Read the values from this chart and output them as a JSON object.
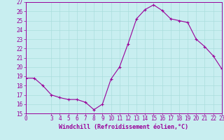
{
  "x": [
    0,
    1,
    2,
    3,
    4,
    5,
    6,
    7,
    8,
    9,
    10,
    11,
    12,
    13,
    14,
    15,
    16,
    17,
    18,
    19,
    20,
    21,
    22,
    23
  ],
  "y": [
    18.8,
    18.8,
    18.0,
    17.0,
    16.7,
    16.5,
    16.5,
    16.2,
    15.4,
    16.0,
    18.7,
    20.0,
    22.5,
    25.2,
    26.2,
    26.7,
    26.1,
    25.2,
    25.0,
    24.8,
    23.0,
    22.2,
    21.2,
    19.8
  ],
  "ylim": [
    15,
    27
  ],
  "xlim": [
    0,
    23
  ],
  "yticks": [
    15,
    16,
    17,
    18,
    19,
    20,
    21,
    22,
    23,
    24,
    25,
    26,
    27
  ],
  "xticks": [
    0,
    3,
    4,
    5,
    6,
    7,
    8,
    9,
    10,
    11,
    12,
    13,
    14,
    15,
    16,
    17,
    18,
    19,
    20,
    21,
    22,
    23
  ],
  "xlabel": "Windchill (Refroidissement éolien,°C)",
  "line_color": "#990099",
  "marker_color": "#990099",
  "bg_color": "#c8eef0",
  "grid_color": "#aadddd",
  "axis_color": "#990099",
  "tick_color": "#990099",
  "label_color": "#990099",
  "tick_fontsize": 5.5,
  "xlabel_fontsize": 6.0
}
